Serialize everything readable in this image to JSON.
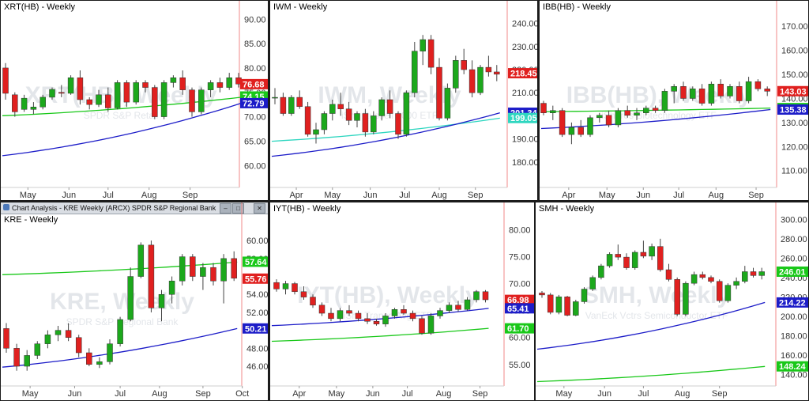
{
  "window_title": "Chart Analysis - KRE Weekly (ARCX) SPDR S&P Regional Bank",
  "window_buttons": [
    "–",
    "□",
    "✕"
  ],
  "chart_data": [
    {
      "id": "xrt",
      "type": "candlestick",
      "title": "XRT(HB) - Weekly",
      "watermark": "XRT(HB), Weekly",
      "watermark_sub": "SPDR S&P Retail",
      "xticks": [
        "May",
        "Jun",
        "Jul",
        "Aug",
        "Sep"
      ],
      "xtick_idx": [
        2.4,
        6.8,
        11.0,
        15.4,
        19.8
      ],
      "yticks": [
        60,
        65,
        70,
        75,
        80,
        85,
        90
      ],
      "ylim": [
        55.5,
        91.5
      ],
      "tags": [
        {
          "value": 76.68,
          "label": "76.68",
          "color": "#e0201f"
        },
        {
          "value": 74.15,
          "label": "74.15",
          "color": "#19c819"
        },
        {
          "value": 72.79,
          "label": "72.79",
          "color": "#1c1cc8"
        }
      ],
      "ma_slow": {
        "color": "#1c1cc8",
        "start": 62.0,
        "end": 72.8
      },
      "ma_fast": {
        "color": "#19c819",
        "start": 70.2,
        "end": 74.0
      },
      "candles": [
        [
          80.0,
          81.0,
          73.5,
          74.8
        ],
        [
          74.5,
          75.0,
          70.0,
          71.0
        ],
        [
          71.5,
          74.5,
          71.0,
          73.8
        ],
        [
          71.5,
          73.0,
          70.5,
          72.0
        ],
        [
          72.0,
          74.5,
          71.5,
          74.0
        ],
        [
          74.0,
          76.0,
          73.5,
          75.6
        ],
        [
          75.0,
          76.5,
          74.0,
          74.8
        ],
        [
          74.8,
          78.5,
          74.5,
          78.0
        ],
        [
          78.0,
          79.5,
          72.5,
          73.5
        ],
        [
          73.5,
          74.0,
          71.5,
          72.5
        ],
        [
          72.5,
          75.5,
          72.0,
          74.5
        ],
        [
          74.5,
          76.0,
          71.0,
          71.8
        ],
        [
          71.8,
          77.5,
          71.5,
          77.0
        ],
        [
          77.0,
          77.5,
          72.0,
          73.0
        ],
        [
          73.0,
          77.5,
          72.5,
          77.0
        ],
        [
          77.0,
          77.5,
          75.0,
          76.0
        ],
        [
          76.0,
          76.5,
          69.5,
          70.0
        ],
        [
          70.0,
          77.5,
          69.5,
          77.0
        ],
        [
          77.0,
          78.5,
          76.0,
          78.0
        ],
        [
          78.0,
          79.5,
          74.5,
          75.5
        ],
        [
          75.5,
          76.0,
          70.0,
          71.0
        ],
        [
          71.0,
          76.0,
          70.5,
          75.5
        ],
        [
          75.5,
          77.5,
          74.0,
          77.0
        ],
        [
          77.0,
          78.0,
          75.0,
          76.0
        ],
        [
          76.0,
          79.0,
          75.5,
          78.0
        ],
        [
          78.0,
          79.0,
          76.0,
          76.7
        ]
      ]
    },
    {
      "id": "iwm",
      "type": "candlestick",
      "title": "IWM - Weekly",
      "watermark": "IWM, Weekly",
      "watermark_sub": "iShs Russell 2000 ETF",
      "xticks": [
        "Apr",
        "May",
        "Jun",
        "Jul",
        "Aug",
        "Sep"
      ],
      "xtick_idx": [
        2.6,
        7.0,
        11.6,
        15.8,
        20.0,
        24.4
      ],
      "yticks": [
        180,
        190,
        200,
        210,
        220,
        230,
        240
      ],
      "ylim": [
        169,
        245
      ],
      "tags": [
        {
          "value": 218.45,
          "label": "218.45",
          "color": "#e0201f"
        },
        {
          "value": 201.34,
          "label": "201.34",
          "color": "#1c1cc8"
        },
        {
          "value": 199.05,
          "label": "199.05",
          "color": "#2fd6c0"
        }
      ],
      "ma_slow": {
        "color": "#1c1cc8",
        "start": 182.5,
        "end": 201.3
      },
      "ma_fast": {
        "color": "#2fd6c0",
        "start": 189.0,
        "end": 199.0
      },
      "candles": [
        [
          208,
          212,
          205,
          208
        ],
        [
          208,
          210,
          200,
          201
        ],
        [
          201,
          209,
          200,
          208
        ],
        [
          208,
          211,
          203,
          204
        ],
        [
          204,
          206,
          191,
          192
        ],
        [
          192,
          197,
          188,
          194
        ],
        [
          194,
          202,
          192,
          201
        ],
        [
          201,
          207,
          198,
          205
        ],
        [
          205,
          210,
          200,
          203
        ],
        [
          203,
          206,
          196,
          198
        ],
        [
          198,
          202,
          195,
          201
        ],
        [
          201,
          203,
          191,
          193
        ],
        [
          193,
          202,
          192,
          200
        ],
        [
          200,
          208,
          198,
          207
        ],
        [
          207,
          211,
          199,
          201
        ],
        [
          201,
          202,
          190,
          192
        ],
        [
          192,
          211,
          191,
          210
        ],
        [
          210,
          232,
          208,
          228
        ],
        [
          228,
          235,
          222,
          233
        ],
        [
          233,
          235,
          218,
          221
        ],
        [
          221,
          225,
          198,
          199
        ],
        [
          199,
          214,
          198,
          212
        ],
        [
          212,
          226,
          210,
          224
        ],
        [
          224,
          229,
          218,
          220
        ],
        [
          220,
          224,
          208,
          210
        ],
        [
          210,
          222,
          209,
          221
        ],
        [
          221,
          226,
          217,
          219
        ],
        [
          219,
          222,
          215,
          218
        ]
      ]
    },
    {
      "id": "ibb",
      "type": "candlestick",
      "title": "IBB(HB) - Weekly",
      "watermark": "IBB(HB), Weekly",
      "watermark_sub": "iShares Biotechnology ETF",
      "xticks": [
        "Apr",
        "May",
        "Jun",
        "Jul",
        "Aug",
        "Sep"
      ],
      "xtick_idx": [
        2.7,
        6.8,
        10.7,
        14.5,
        18.5,
        22.8
      ],
      "yticks": [
        110,
        120,
        130,
        140,
        150,
        160,
        170
      ],
      "ylim": [
        103,
        176
      ],
      "tags": [
        {
          "value": 143.03,
          "label": "143.03",
          "color": "#e0201f"
        },
        {
          "value": 136.0,
          "label": "136.00",
          "color": "#19c819"
        },
        {
          "value": 135.38,
          "label": "135.38",
          "color": "#1c1cc8"
        }
      ],
      "ma_slow": {
        "color": "#1c1cc8",
        "start": 127.5,
        "end": 135.4
      },
      "ma_fast": {
        "color": "#19c819",
        "start": 134.5,
        "end": 136.0
      },
      "candles": [
        [
          138,
          139,
          133,
          134
        ],
        [
          134,
          137,
          131,
          135
        ],
        [
          135,
          136,
          124,
          125
        ],
        [
          125,
          130,
          121,
          128
        ],
        [
          128,
          131,
          124,
          125
        ],
        [
          125,
          133,
          124,
          132
        ],
        [
          132,
          134,
          130,
          133
        ],
        [
          133,
          135,
          128,
          129
        ],
        [
          129,
          136,
          128,
          135
        ],
        [
          135,
          137,
          132,
          133
        ],
        [
          133,
          136,
          131,
          134
        ],
        [
          134,
          137,
          133,
          136
        ],
        [
          136,
          137,
          134,
          135
        ],
        [
          135,
          144,
          134,
          143
        ],
        [
          143,
          146,
          138,
          145
        ],
        [
          145,
          147,
          139,
          140
        ],
        [
          140,
          145,
          139,
          144
        ],
        [
          144,
          146,
          137,
          138
        ],
        [
          138,
          147,
          137,
          146
        ],
        [
          146,
          148,
          140,
          141
        ],
        [
          141,
          146,
          140,
          145
        ],
        [
          145,
          147,
          138,
          139
        ],
        [
          139,
          149,
          138,
          147
        ],
        [
          147,
          148,
          143,
          144
        ],
        [
          144,
          145,
          141,
          143
        ]
      ]
    },
    {
      "id": "kre",
      "type": "candlestick",
      "title": "KRE - Weekly",
      "watermark": "KRE, Weekly",
      "watermark_sub": "SPDR S&P Regional Bank",
      "xticks": [
        "May",
        "Jun",
        "Jul",
        "Aug",
        "Sep",
        "Oct"
      ],
      "xtick_idx": [
        2.3,
        6.6,
        11.0,
        14.8,
        19.0,
        22.8
      ],
      "yticks": [
        46,
        48,
        50,
        52,
        54,
        56,
        58,
        60
      ],
      "ylim": [
        43.8,
        61.6
      ],
      "tags": [
        {
          "value": 57.64,
          "label": "57.64",
          "color": "#19c819"
        },
        {
          "value": 55.76,
          "label": "55.76",
          "color": "#e0201f"
        },
        {
          "value": 50.21,
          "label": "50.21",
          "color": "#1c1cc8"
        }
      ],
      "ma_slow": {
        "color": "#1c1cc8",
        "start": 45.9,
        "end": 50.2
      },
      "ma_fast": {
        "color": "#19c819",
        "start": 56.2,
        "end": 57.6
      },
      "candles": [
        [
          50.2,
          50.8,
          47.5,
          48.0
        ],
        [
          48.0,
          48.5,
          45.5,
          46.0
        ],
        [
          46.0,
          47.8,
          45.5,
          47.2
        ],
        [
          47.2,
          48.8,
          46.8,
          48.5
        ],
        [
          48.5,
          50.0,
          48.0,
          49.5
        ],
        [
          49.5,
          50.5,
          48.8,
          50.0
        ],
        [
          50.0,
          50.8,
          48.8,
          49.2
        ],
        [
          49.2,
          49.5,
          47.0,
          47.5
        ],
        [
          47.5,
          48.0,
          46.0,
          46.2
        ],
        [
          46.2,
          47.0,
          45.8,
          46.5
        ],
        [
          46.5,
          49.0,
          46.2,
          48.5
        ],
        [
          48.5,
          51.5,
          48.2,
          51.2
        ],
        [
          51.2,
          57.0,
          51.0,
          56.0
        ],
        [
          56.0,
          59.8,
          55.8,
          59.5
        ],
        [
          59.5,
          60.0,
          52.0,
          52.5
        ],
        [
          52.5,
          54.5,
          51.0,
          54.0
        ],
        [
          54.0,
          56.0,
          53.0,
          55.5
        ],
        [
          55.5,
          58.5,
          55.0,
          58.2
        ],
        [
          58.2,
          58.5,
          55.5,
          56.0
        ],
        [
          56.0,
          57.5,
          54.5,
          57.0
        ],
        [
          57.0,
          57.5,
          55.0,
          55.5
        ],
        [
          55.5,
          58.5,
          53.0,
          58.0
        ],
        [
          58.0,
          58.8,
          55.5,
          55.8
        ]
      ]
    },
    {
      "id": "iyt",
      "type": "candlestick",
      "title": "IYT(HB) - Weekly",
      "watermark": "IYT(HB), Weekly",
      "watermark_sub": "iShs Transp Avg ETF",
      "xticks": [
        "Apr",
        "May",
        "Jun",
        "Jul",
        "Aug",
        "Sep"
      ],
      "xtick_idx": [
        2.5,
        6.6,
        10.6,
        14.4,
        18.4,
        22.4
      ],
      "yticks": [
        55,
        60,
        65,
        70,
        75,
        80
      ],
      "ylim": [
        51.0,
        83.0
      ],
      "tags": [
        {
          "value": 66.98,
          "label": "66.98",
          "color": "#e0201f"
        },
        {
          "value": 65.41,
          "label": "65.41",
          "color": "#1c1cc8"
        },
        {
          "value": 61.7,
          "label": "61.70",
          "color": "#19c819"
        }
      ],
      "ma_slow": {
        "color": "#1c1cc8",
        "start": 62.2,
        "end": 65.4
      },
      "ma_fast": {
        "color": "#19c819",
        "start": 59.3,
        "end": 61.7
      },
      "candles": [
        [
          70.2,
          70.8,
          68.5,
          69.0
        ],
        [
          69.0,
          70.5,
          68.0,
          70.0
        ],
        [
          70.0,
          70.3,
          68.0,
          68.5
        ],
        [
          68.5,
          69.5,
          67.0,
          67.5
        ],
        [
          67.5,
          68.0,
          65.5,
          66.0
        ],
        [
          66.0,
          66.5,
          64.0,
          64.5
        ],
        [
          64.5,
          65.5,
          63.0,
          63.5
        ],
        [
          63.5,
          65.5,
          63.0,
          65.0
        ],
        [
          65.0,
          66.0,
          64.0,
          64.5
        ],
        [
          64.5,
          65.0,
          63.0,
          63.5
        ],
        [
          63.5,
          64.5,
          62.5,
          63.0
        ],
        [
          63.0,
          63.5,
          62.2,
          62.5
        ],
        [
          62.5,
          64.5,
          62.0,
          64.0
        ],
        [
          64.0,
          65.5,
          63.5,
          65.2
        ],
        [
          65.2,
          66.0,
          64.2,
          64.5
        ],
        [
          64.5,
          65.0,
          63.0,
          63.5
        ],
        [
          63.5,
          64.0,
          60.5,
          60.8
        ],
        [
          60.8,
          64.5,
          60.5,
          64.0
        ],
        [
          64.0,
          65.5,
          63.5,
          65.0
        ],
        [
          65.0,
          66.5,
          64.5,
          66.0
        ],
        [
          66.0,
          66.8,
          64.8,
          65.2
        ],
        [
          65.2,
          67.5,
          65.0,
          67.0
        ],
        [
          67.0,
          68.8,
          66.5,
          68.5
        ],
        [
          68.5,
          68.8,
          66.5,
          67.0
        ]
      ]
    },
    {
      "id": "smh",
      "type": "candlestick",
      "title": "SMH - Weekly",
      "watermark": "SMH, Weekly",
      "watermark_sub": "VanEck Vctrs Semiconductor ETF",
      "xticks": [
        "May",
        "Jun",
        "Jul",
        "Aug",
        "Sep"
      ],
      "xtick_idx": [
        2.6,
        7.4,
        12.0,
        16.6,
        21.0
      ],
      "yticks": [
        140,
        160,
        180,
        200,
        220,
        240,
        260,
        280,
        300
      ],
      "ylim": [
        128,
        306
      ],
      "tags": [
        {
          "value": 246.01,
          "label": "246.01",
          "color": "#19c819"
        },
        {
          "value": 214.22,
          "label": "214.22",
          "color": "#1c1cc8"
        },
        {
          "value": 148.24,
          "label": "148.24",
          "color": "#19c819"
        }
      ],
      "ma_slow": {
        "color": "#1c1cc8",
        "start": 166.0,
        "end": 214.2
      },
      "ma_fast": {
        "color": "#19c819",
        "start": 132.5,
        "end": 148.2
      },
      "candles": [
        [
          224,
          226,
          219,
          222
        ],
        [
          222,
          224,
          202,
          204
        ],
        [
          204,
          222,
          202,
          220
        ],
        [
          220,
          221,
          200,
          201
        ],
        [
          201,
          217,
          200,
          215
        ],
        [
          215,
          230,
          213,
          228
        ],
        [
          228,
          242,
          226,
          240
        ],
        [
          240,
          254,
          238,
          252
        ],
        [
          252,
          266,
          250,
          264
        ],
        [
          264,
          274,
          258,
          261
        ],
        [
          261,
          265,
          248,
          250
        ],
        [
          250,
          268,
          248,
          266
        ],
        [
          266,
          278,
          260,
          262
        ],
        [
          262,
          275,
          258,
          272
        ],
        [
          272,
          280,
          246,
          248
        ],
        [
          248,
          254,
          236,
          238
        ],
        [
          238,
          240,
          200,
          202
        ],
        [
          202,
          236,
          200,
          234
        ],
        [
          234,
          246,
          232,
          243
        ],
        [
          243,
          246,
          238,
          240
        ],
        [
          240,
          242,
          234,
          236
        ],
        [
          236,
          238,
          214,
          216
        ],
        [
          216,
          234,
          214,
          232
        ],
        [
          232,
          240,
          228,
          236
        ],
        [
          236,
          252,
          234,
          246
        ],
        [
          246,
          250,
          240,
          242
        ],
        [
          242,
          250,
          238,
          246
        ]
      ]
    }
  ]
}
